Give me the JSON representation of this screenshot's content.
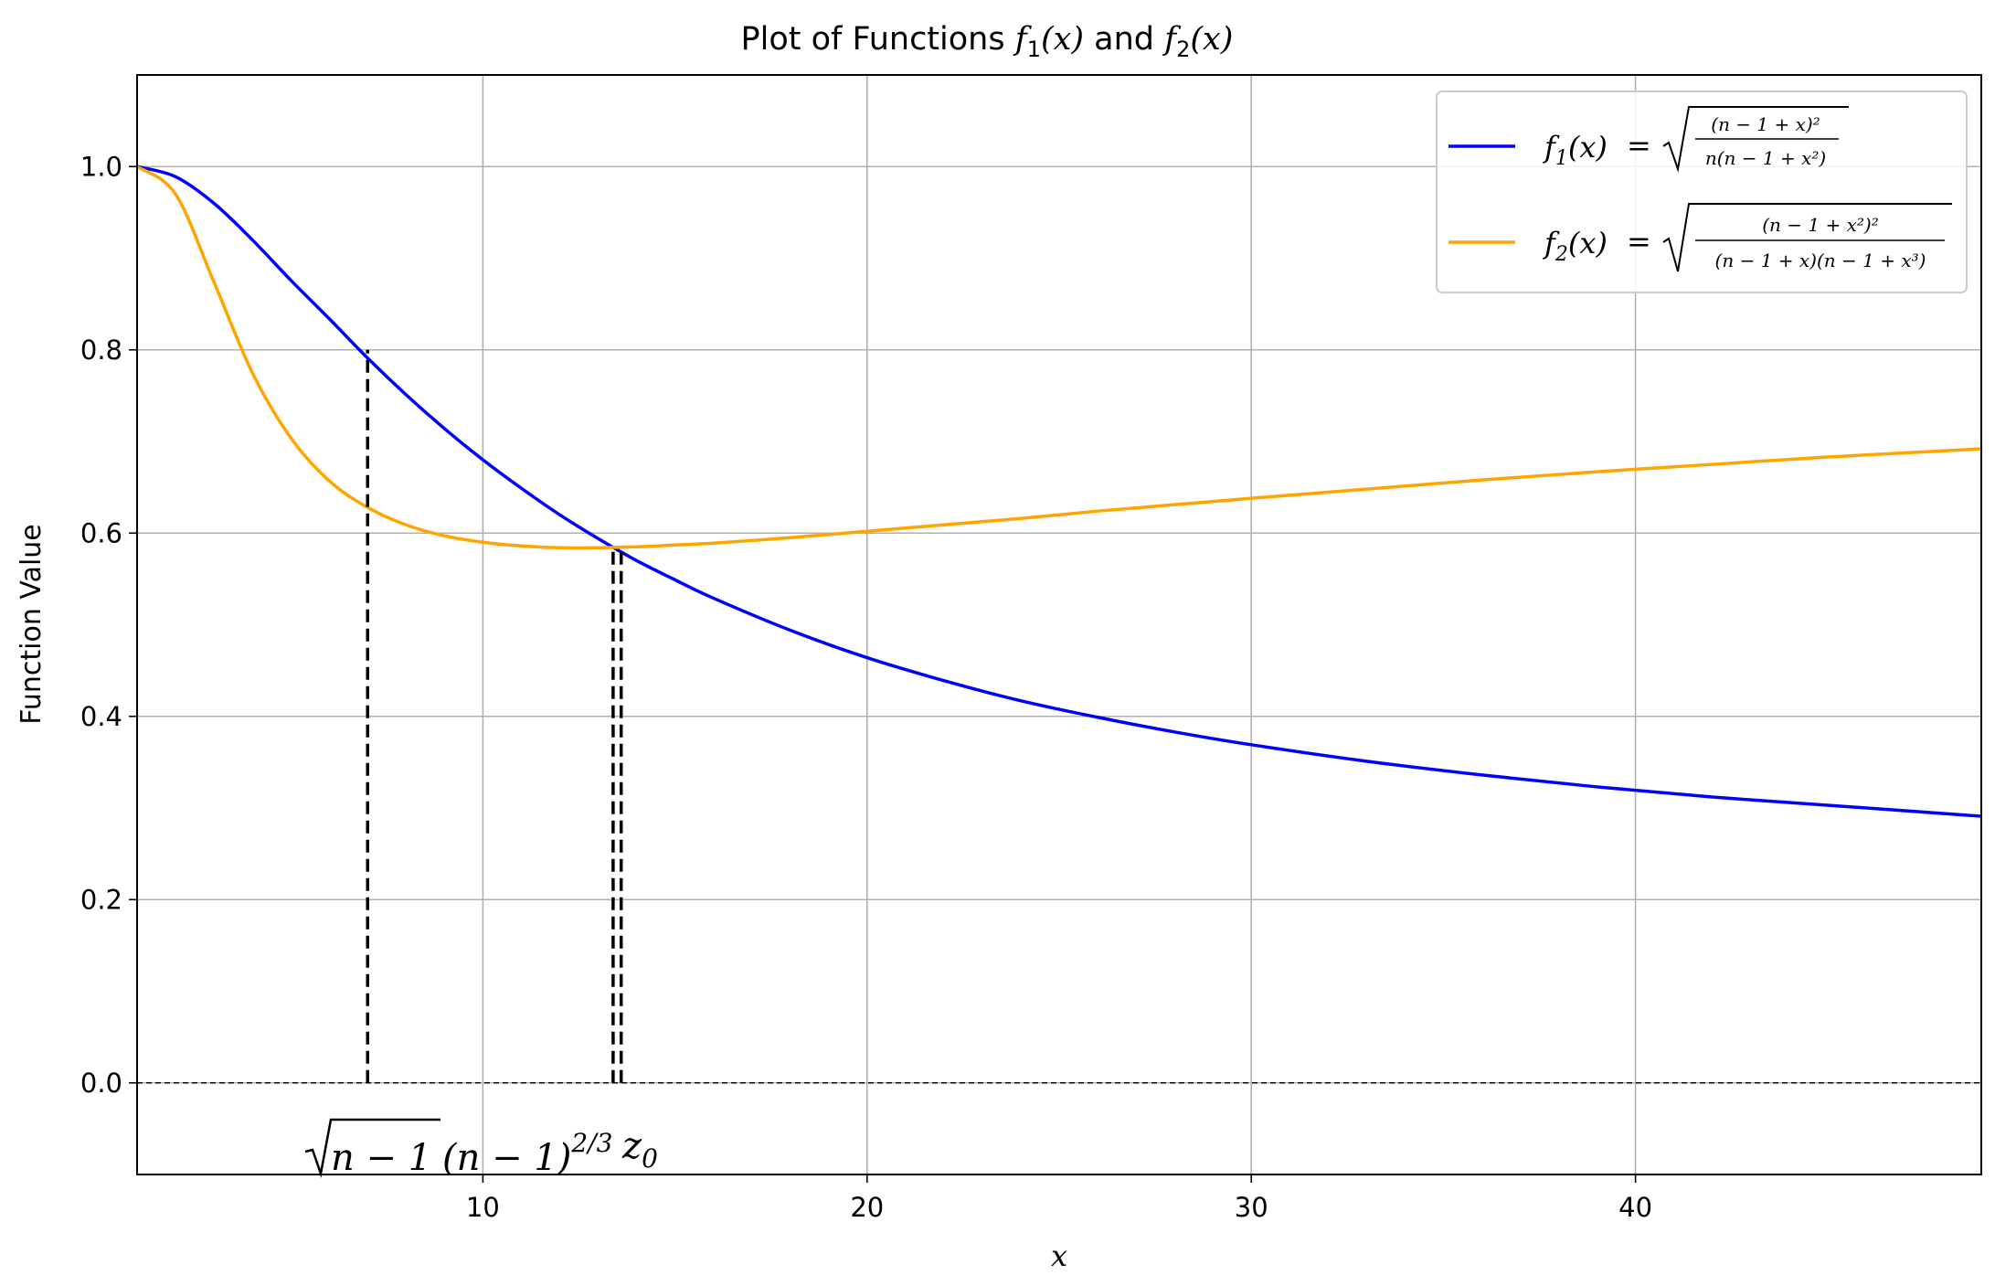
{
  "chart_data": {
    "type": "line",
    "title": "Plot of Functions f1(x) and f2(x)",
    "xlabel": "x",
    "ylabel": "Function Value",
    "xlim": [
      1,
      49
    ],
    "ylim": [
      -0.1,
      1.1
    ],
    "xticks": [
      10,
      20,
      30,
      40
    ],
    "xtick_labels": [
      "10",
      "20",
      "30",
      "40"
    ],
    "yticks": [
      0.0,
      0.2,
      0.4,
      0.6,
      0.8,
      1.0
    ],
    "ytick_labels": [
      "0.0",
      "0.2",
      "0.4",
      "0.6",
      "0.8",
      "1.0"
    ],
    "grid": true,
    "legend_position": "top-right",
    "n": 50,
    "series": [
      {
        "name": "f1(x) = sqrt((n − 1 + x)² / (n(n − 1 + x²)))",
        "color": "#0000ff",
        "x": [
          1,
          2,
          3,
          4,
          5,
          6,
          7,
          8,
          9,
          10,
          11,
          12,
          13,
          14,
          15,
          16,
          18,
          20,
          22,
          24,
          26,
          28,
          30,
          33,
          36,
          39,
          42,
          45,
          49
        ],
        "y": [
          1.0,
          0.989,
          0.96,
          0.92,
          0.876,
          0.834,
          0.791,
          0.751,
          0.714,
          0.68,
          0.649,
          0.62,
          0.594,
          0.57,
          0.549,
          0.529,
          0.494,
          0.464,
          0.439,
          0.417,
          0.399,
          0.383,
          0.369,
          0.351,
          0.336,
          0.323,
          0.312,
          0.303,
          0.291
        ]
      },
      {
        "name": "f2(x) = sqrt((n − 1 + x²)² / ((n − 1 + x)(n − 1 + x³)))",
        "color": "#ffa500",
        "x": [
          1,
          2,
          3,
          4,
          5,
          6,
          7,
          8,
          9,
          10,
          11,
          12,
          13,
          14,
          15,
          16,
          18,
          20,
          22,
          24,
          26,
          28,
          30,
          33,
          36,
          39,
          42,
          45,
          49
        ],
        "y": [
          1.0,
          0.97,
          0.874,
          0.775,
          0.704,
          0.657,
          0.628,
          0.609,
          0.597,
          0.59,
          0.586,
          0.584,
          0.584,
          0.585,
          0.587,
          0.589,
          0.595,
          0.602,
          0.609,
          0.616,
          0.624,
          0.631,
          0.638,
          0.648,
          0.658,
          0.667,
          0.675,
          0.683,
          0.692
        ]
      }
    ],
    "vlines": [
      {
        "label": "√(n − 1)",
        "x": 7.0,
        "y_top": 0.8
      },
      {
        "label": "(n − 1)^(2/3)",
        "x": 13.39,
        "y_top": 0.586
      },
      {
        "label": "z0",
        "x": 13.6,
        "y_top": 0.584
      }
    ],
    "hline": {
      "y": 0.0
    }
  },
  "texts": {
    "title_prefix": "Plot of Functions ",
    "title_and": " and ",
    "f": "f",
    "sub1": "1",
    "sub2": "2",
    "paren_x": "(x)",
    "xlabel": "x",
    "ylabel": "Function Value",
    "legend_f1_num": "(n − 1 + x)²",
    "legend_f1_den": "n(n − 1 + x²)",
    "legend_f2_num": "(n − 1 + x²)²",
    "legend_f2_den": "(n − 1 + x)(n − 1 + x³)",
    "equals": "=",
    "vlabel_sqrt": "n − 1",
    "vlabel_pow_base": "(n − 1)",
    "vlabel_pow_exp": "2/3",
    "vlabel_z": "z",
    "vlabel_z_sub": "0"
  }
}
